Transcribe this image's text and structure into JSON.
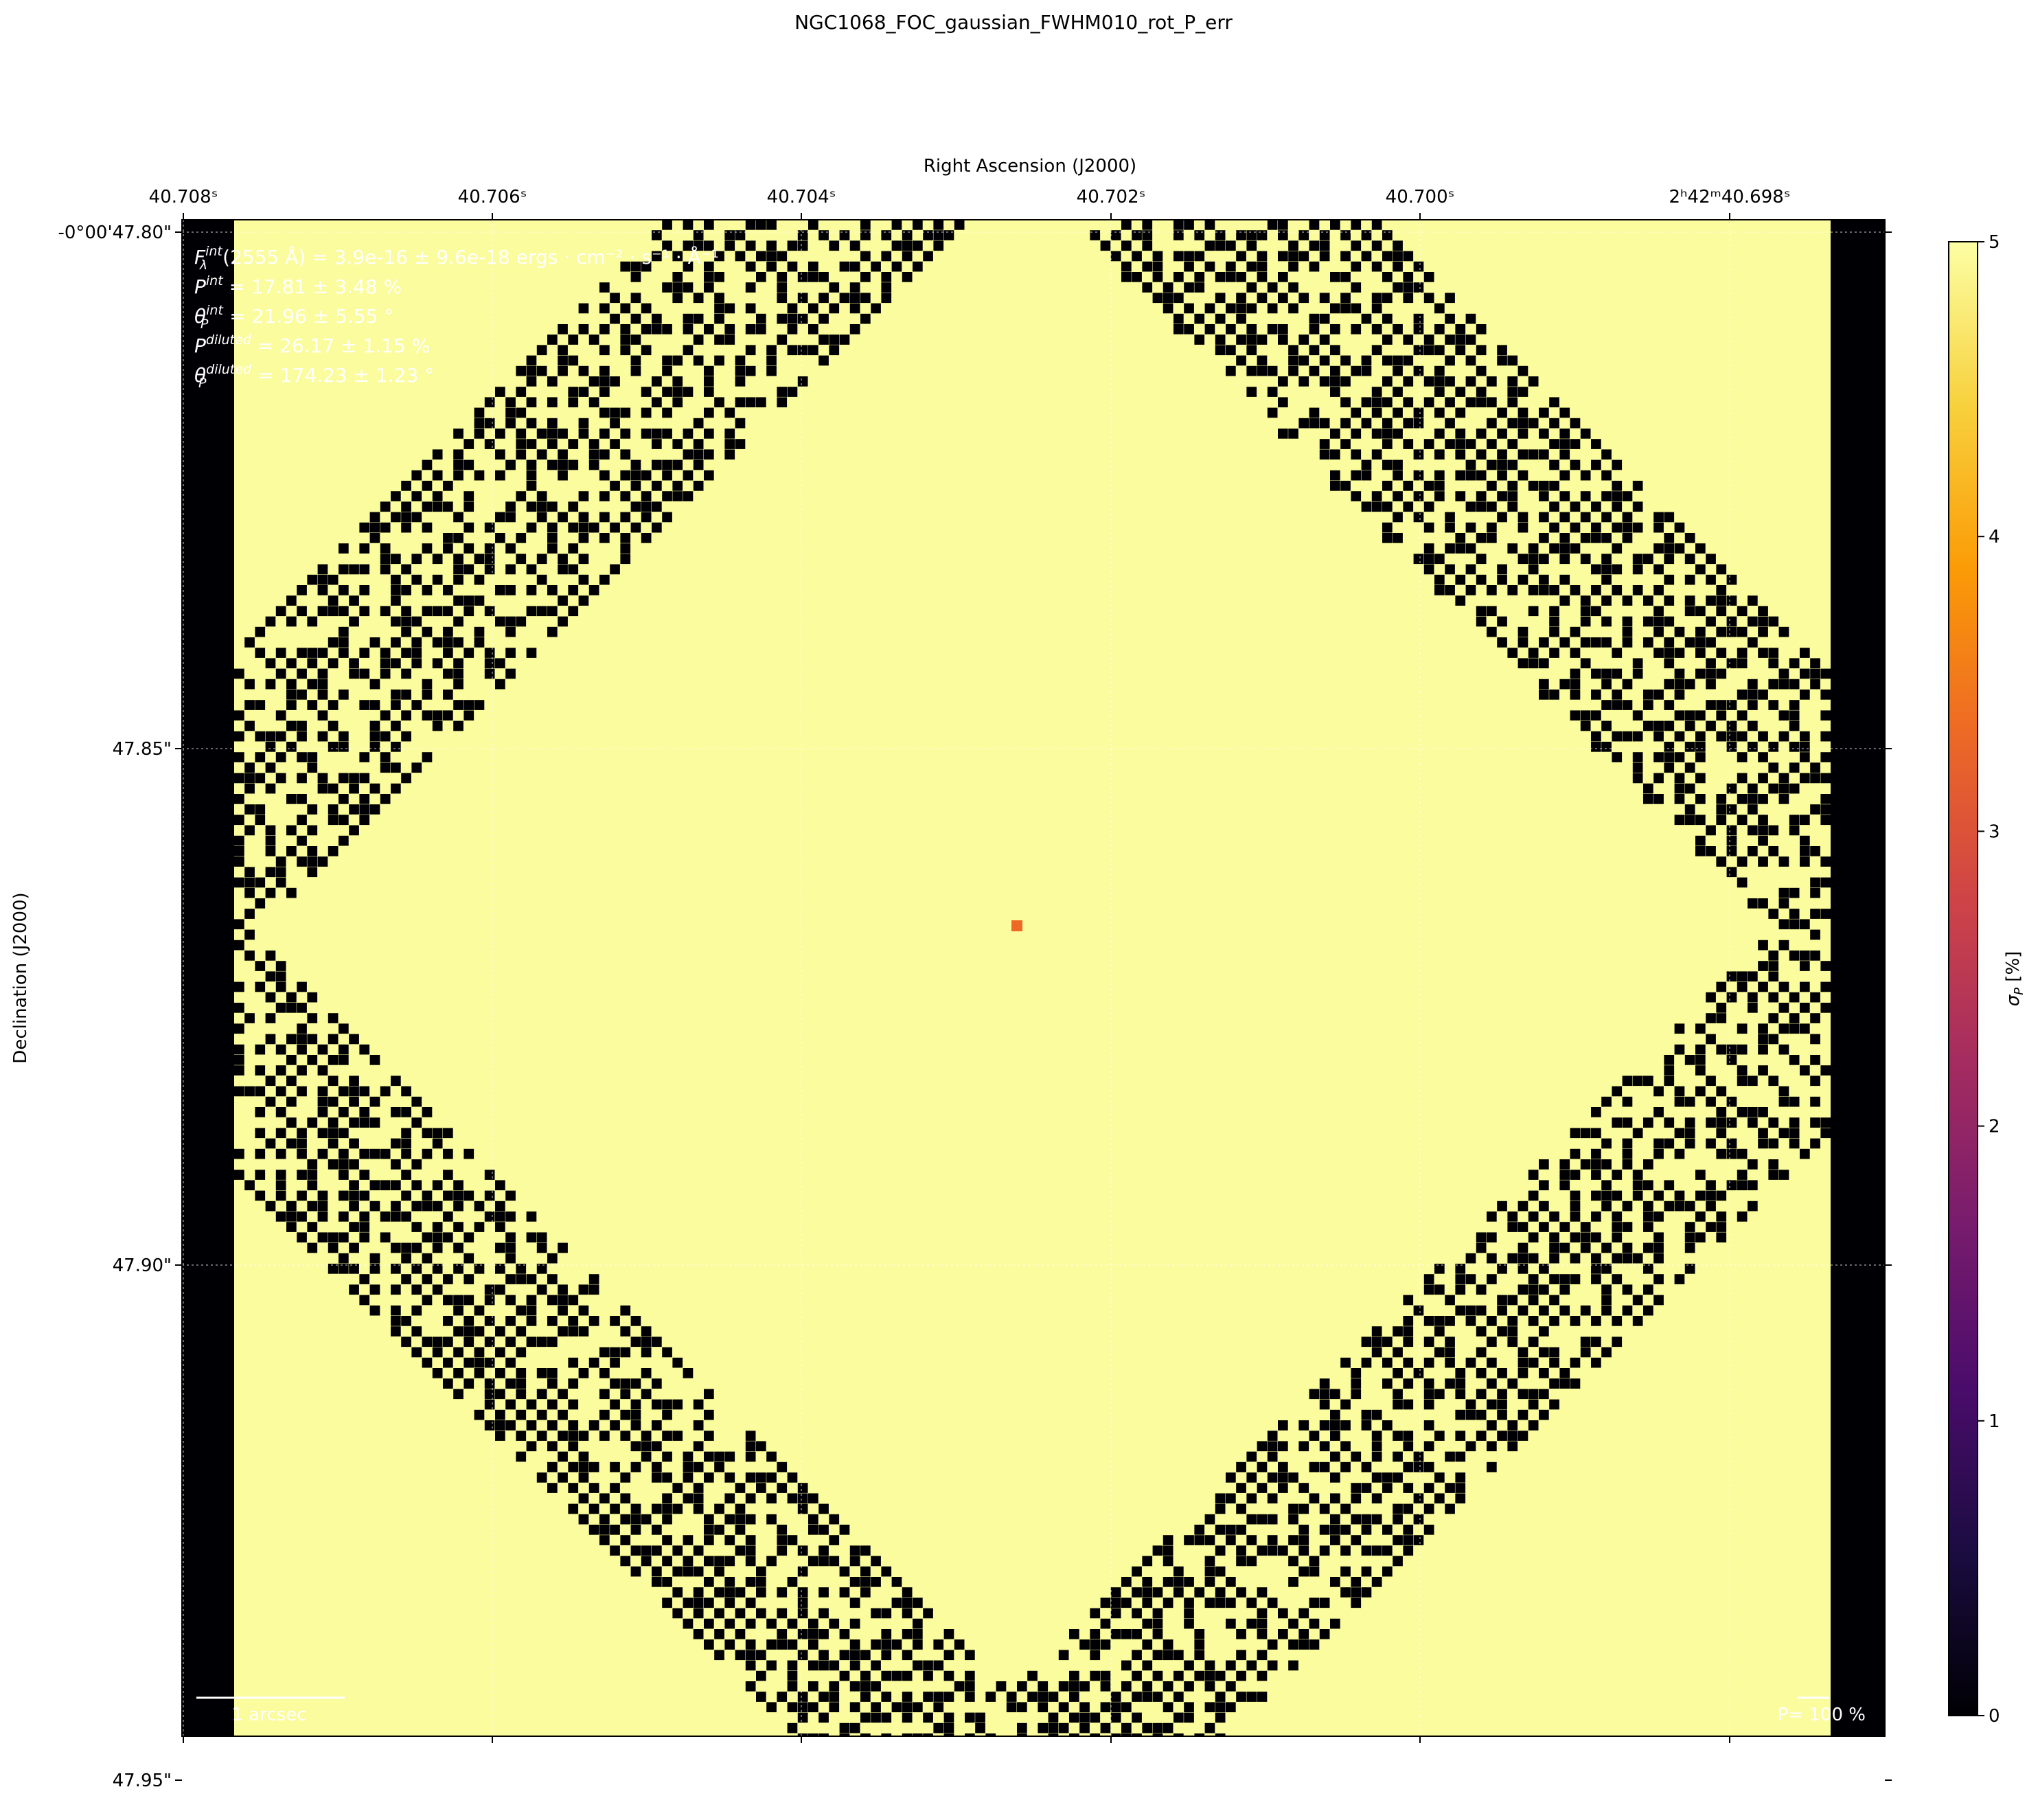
{
  "chart_data": {
    "type": "heatmap",
    "title": "NGC1068_FOC_gaussian_FWHM010_rot_P_err",
    "xlabel": "Right Ascension (J2000)",
    "ylabel": "Declination (J2000)",
    "x_ticks": [
      "40.708ˢ",
      "40.706ˢ",
      "40.704ˢ",
      "40.702ˢ",
      "40.700ˢ",
      "2ʰ42ᵐ40.698ˢ"
    ],
    "y_ticks": [
      "-0°00'47.80\"",
      "47.85\"",
      "47.90\"",
      "47.95\""
    ],
    "colorbar": {
      "label": "σ_P [%]",
      "label_parts": {
        "symbol": "σ",
        "sub": "P",
        "unit": " [%]"
      },
      "ticks": [
        "0",
        "1",
        "2",
        "3",
        "4",
        "5"
      ],
      "range": [
        0,
        5
      ],
      "colormap": "inferno",
      "stops": [
        "#000004",
        "#1b0c41",
        "#4a0c6b",
        "#781c6d",
        "#a52c60",
        "#cf4446",
        "#ed6925",
        "#fb9b06",
        "#f7d13d",
        "#fcffa4"
      ]
    },
    "annotations": [
      {
        "sym": "F",
        "sup": "int",
        "sub": "λ",
        "rest": "(2555 Å) = 3.9e-16 ± 9.6e-18 ergs · cm⁻² · s⁻¹ · Å⁻¹"
      },
      {
        "sym": "P",
        "sup": "int",
        "sub": "",
        "rest": " = 17.81 ± 3.48 %"
      },
      {
        "sym": "θ",
        "sup": "int",
        "sub": "P",
        "rest": " = 21.96 ± 5.55 °"
      },
      {
        "sym": "P",
        "sup": "diluted",
        "sub": "",
        "rest": " = 26.17 ± 1.15 %"
      },
      {
        "sym": "θ",
        "sup": "diluted",
        "sub": "P",
        "rest": " = 174.23 ± 1.23 °"
      }
    ],
    "scalebar_label": "1 arcsec",
    "p_ref_label": "P= 100 %",
    "map": {
      "background_value": 5,
      "masked_value": 0,
      "central_pixel_value": 3.5,
      "masked_regions": "black columns on left and right edges; checkered black pixels along the four diagonal edges of a central diamond",
      "grid": "dotted white coordinate grid"
    }
  }
}
